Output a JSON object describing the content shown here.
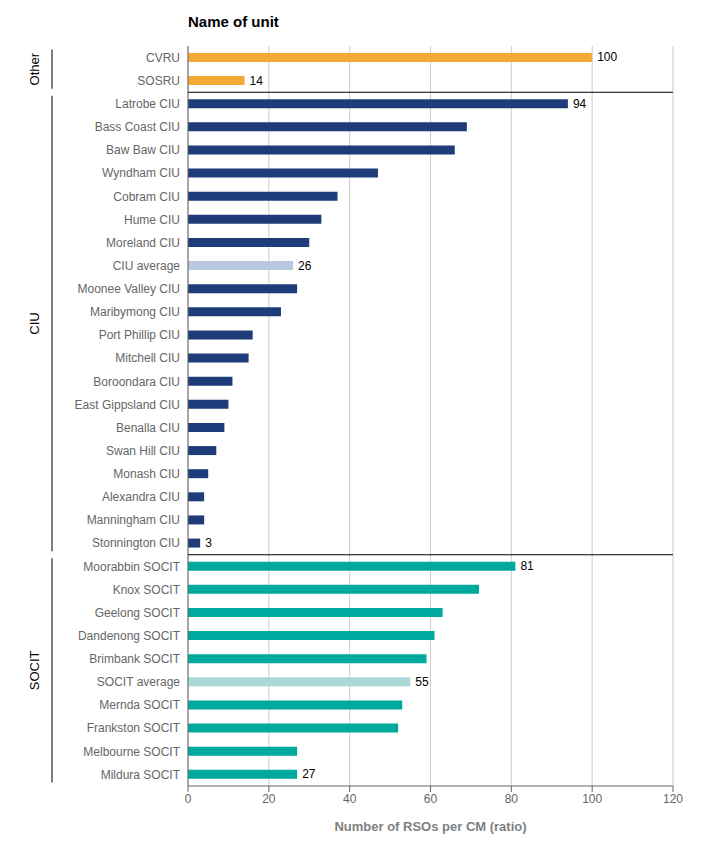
{
  "chart_data": {
    "type": "bar",
    "orientation": "horizontal",
    "title": "Name of unit",
    "xlabel": "Number of RSOs per CM (ratio)",
    "categories": [
      "CVRU",
      "SOSRU",
      "Latrobe CIU",
      "Bass Coast CIU",
      "Baw Baw CIU",
      "Wyndham CIU",
      "Cobram CIU",
      "Hume CIU",
      "Moreland CIU",
      "CIU average",
      "Moonee Valley CIU",
      "Maribymong CIU",
      "Port Phillip CIU",
      "Mitchell CIU",
      "Boroondara CIU",
      "East Gippsland CIU",
      "Benalla CIU",
      "Swan Hill CIU",
      "Monash CIU",
      "Alexandra CIU",
      "Manningham CIU",
      "Stonnington CIU",
      "Moorabbin SOCIT",
      "Knox SOCIT",
      "Geelong SOCIT",
      "Dandenong SOCIT",
      "Brimbank SOCIT",
      "SOCIT average",
      "Mernda SOCIT",
      "Frankston SOCIT",
      "Melbourne SOCIT",
      "Mildura SOCIT"
    ],
    "values": [
      100,
      14,
      94,
      69,
      66,
      47,
      37,
      33,
      30,
      26,
      27,
      23,
      16,
      15,
      11,
      10,
      9,
      7,
      5,
      4,
      4,
      3,
      81,
      72,
      63,
      61,
      59,
      55,
      53,
      52,
      27,
      27
    ],
    "value_labels": [
      "100",
      "14",
      "94",
      null,
      null,
      null,
      null,
      null,
      null,
      "26",
      null,
      null,
      null,
      null,
      null,
      null,
      null,
      null,
      null,
      null,
      null,
      "3",
      "81",
      null,
      null,
      null,
      null,
      "55",
      null,
      null,
      null,
      "27"
    ],
    "data_labels": true,
    "colors": [
      "#F4A935",
      "#F4A935",
      "#1F3C7A",
      "#1F3C7A",
      "#1F3C7A",
      "#1F3C7A",
      "#1F3C7A",
      "#1F3C7A",
      "#1F3C7A",
      "#B8C8E0",
      "#1F3C7A",
      "#1F3C7A",
      "#1F3C7A",
      "#1F3C7A",
      "#1F3C7A",
      "#1F3C7A",
      "#1F3C7A",
      "#1F3C7A",
      "#1F3C7A",
      "#1F3C7A",
      "#1F3C7A",
      "#1F3C7A",
      "#00A99D",
      "#00A99D",
      "#00A99D",
      "#00A99D",
      "#00A99D",
      "#A8D8D8",
      "#00A99D",
      "#00A99D",
      "#00A99D",
      "#00A99D"
    ],
    "groups": [
      {
        "label": "Other",
        "first": "CVRU",
        "last": "SOSRU"
      },
      {
        "label": "CIU",
        "first": "Latrobe CIU",
        "last": "Stonnington CIU"
      },
      {
        "label": "SOCIT",
        "first": "Moorabbin SOCIT",
        "last": "Mildura SOCIT"
      }
    ],
    "xlim": [
      0,
      120
    ],
    "xticks": [
      0,
      20,
      40,
      60,
      80,
      100,
      120
    ],
    "grid": true
  }
}
